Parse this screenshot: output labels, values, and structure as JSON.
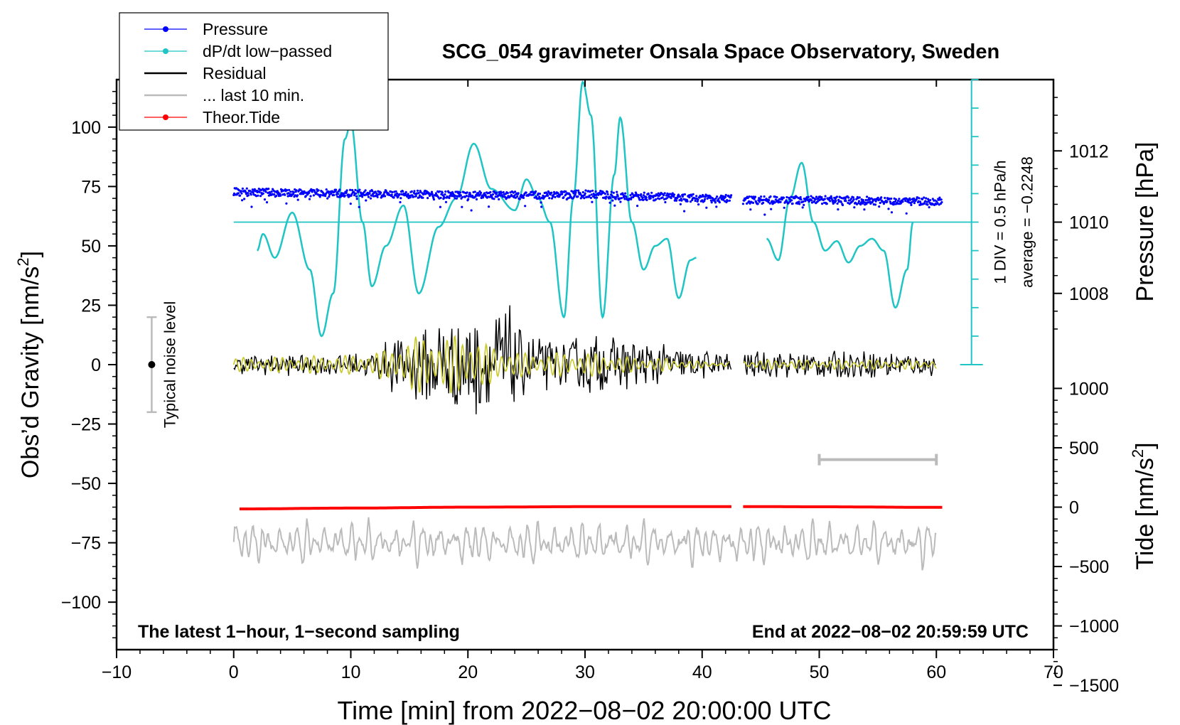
{
  "chart_data": {
    "type": "line",
    "title": "SCG_054 gravimeter Onsala Space Observatory, Sweden",
    "xlabel": "Time [min] from 2022−08−02 20:00:00 UTC",
    "ylabel_left": "Obs’d Gravity [nm/s",
    "ylabel_left_sup": "2",
    "ylabel_left_tail": "]",
    "ylabel_right_top": "Pressure [hPa]",
    "ylabel_right_bottom": "Tide [nm/s",
    "ylabel_right_bottom_sup": "2",
    "ylabel_right_bottom_tail": "]",
    "xlim": [
      -10,
      70
    ],
    "ylim": [
      -120,
      120
    ],
    "x_ticks": [
      "−10",
      "0",
      "10",
      "20",
      "30",
      "40",
      "50",
      "60",
      "70"
    ],
    "x_tick_values": [
      -10,
      0,
      10,
      20,
      30,
      40,
      50,
      60,
      70
    ],
    "y_ticks": [
      "−100",
      "−75",
      "−50",
      "−25",
      "0",
      "25",
      "50",
      "75",
      "100"
    ],
    "y_tick_values": [
      -100,
      -75,
      -50,
      -25,
      0,
      25,
      50,
      75,
      100
    ],
    "pressure_ticks": [
      "1008",
      "1010",
      "1012"
    ],
    "pressure_tick_values": [
      1008,
      1010,
      1012
    ],
    "pressure_axis": {
      "ref_hpa": 1010,
      "ref_y": 60,
      "nm_per_hpa": 15
    },
    "tide_ticks": [
      "−1500",
      "−1000",
      "−500",
      "0",
      "500",
      "1000"
    ],
    "tide_tick_values": [
      -1500,
      -1000,
      -500,
      0,
      500,
      1000
    ],
    "tide_axis": {
      "ref_nm": 0,
      "ref_y": -60,
      "gravity_per_tide": 0.05
    },
    "legend": {
      "placement": "top-left",
      "entries": [
        {
          "label": "Pressure",
          "color": "#0000ff",
          "marker": true
        },
        {
          "label": "dP/dt low−passed",
          "color": "#1fc4c4",
          "marker": true
        },
        {
          "label": "Residual",
          "color": "#000000",
          "marker": false
        },
        {
          "label": "... last 10 min.",
          "color": "#bbbbbb",
          "marker": false
        },
        {
          "label": "Theor.Tide",
          "color": "#ff0000",
          "marker": true
        }
      ]
    },
    "annotations": {
      "left_note": "The latest 1−hour, 1−second sampling",
      "right_note": "End at 2022−08−02 20:59:59 UTC",
      "noise_label": "Typical noise level",
      "noise_level": {
        "x": -7,
        "center": 0,
        "half_range": 20
      },
      "div_label": "1 DIV = 0.5 hPa/h",
      "average_label": "average = −0.2248",
      "dpdt_scale": {
        "x": 63,
        "y_top": 120,
        "y_bottom": 0,
        "divisions": 10
      },
      "ten_min_bar": {
        "x_start": 50,
        "x_end": 60,
        "y": -40
      }
    },
    "series": [
      {
        "name": "Pressure",
        "color": "#0000ff",
        "unit": "hPa",
        "segments": [
          {
            "x": [
              0,
              5,
              10,
              15,
              20,
              25,
              30,
              35,
              42.5
            ],
            "values": [
              1010.85,
              1010.82,
              1010.8,
              1010.78,
              1010.75,
              1010.75,
              1010.78,
              1010.72,
              1010.65
            ]
          },
          {
            "x": [
              43.5,
              50,
              55,
              60.5
            ],
            "values": [
              1010.62,
              1010.62,
              1010.6,
              1010.58
            ]
          }
        ]
      },
      {
        "name": "dP/dt low−passed",
        "color": "#1fc4c4",
        "unit": "plot units",
        "segments": [
          {
            "x": [
              2,
              2.5,
              3.5,
              5,
              6.5,
              7.5,
              8.5,
              9.5,
              10,
              11,
              11.8,
              13,
              14.5,
              15.8,
              17.5,
              19,
              20.5,
              22,
              24,
              25,
              26,
              27,
              28.2,
              29,
              29.8,
              30.5,
              31.5,
              32.5,
              33,
              34,
              35,
              36,
              37,
              38,
              39,
              39.5
            ],
            "values": [
              48,
              55,
              45,
              64,
              40,
              12,
              30,
              95,
              102,
              60,
              33,
              50,
              67,
              30,
              58,
              70,
              93,
              74,
              65,
              78,
              70,
              60,
              20,
              70,
              119,
              105,
              20,
              80,
              104,
              60,
              40,
              50,
              53,
              28,
              44,
              45
            ]
          },
          {
            "x": [
              45.5,
              46.5,
              47.5,
              48.5,
              49.5,
              50.5,
              51.5,
              52.5,
              53.5,
              54.5,
              55.5,
              56.5,
              57.5,
              58
            ],
            "values": [
              53,
              44,
              70,
              85,
              60,
              48,
              52,
              43,
              50,
              53,
              48,
              24,
              40,
              60
            ]
          }
        ]
      },
      {
        "name": "Residual",
        "color": "#000000",
        "unit": "nm/s^2",
        "envelope": {
          "x": [
            0,
            5,
            10,
            12,
            14,
            16,
            18,
            20,
            22,
            23,
            25,
            28,
            30,
            32,
            35,
            38,
            42.5,
            43.5,
            50,
            55,
            60
          ],
          "amplitude": [
            4,
            5,
            5,
            6,
            15,
            16,
            22,
            25,
            18,
            28,
            14,
            10,
            14,
            12,
            10,
            8,
            5,
            6,
            6,
            6,
            5
          ]
        },
        "gap": [
          42.5,
          43.5
        ]
      },
      {
        "name": "Residual low-passed",
        "color": "#c8c82a",
        "unit": "nm/s^2",
        "envelope": {
          "x": [
            0,
            10,
            13,
            15,
            18,
            20,
            22,
            25,
            30,
            35,
            42,
            43.5,
            60
          ],
          "amplitude": [
            3,
            4,
            6,
            12,
            12,
            13,
            8,
            5,
            5,
            3,
            1,
            2,
            2
          ]
        }
      },
      {
        "name": "... last 10 min.",
        "color": "#bbbbbb",
        "unit": "nm/s^2",
        "offset": -75,
        "x_range": [
          0,
          60
        ]
      },
      {
        "name": "Theor.Tide",
        "color": "#ff0000",
        "unit": "nm/s^2",
        "segments": [
          {
            "x": [
              0.5,
              10,
              20,
              30,
              42.5
            ],
            "values": [
              -15,
              -8,
              0,
              4,
              5
            ]
          },
          {
            "x": [
              43.5,
              50,
              60.5
            ],
            "values": [
              5,
              3,
              -2
            ]
          }
        ]
      }
    ]
  }
}
